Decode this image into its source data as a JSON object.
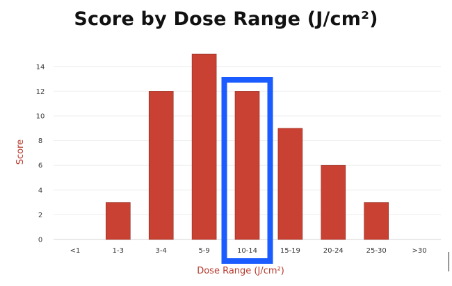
{
  "chart_data": {
    "type": "bar",
    "title": "Score by Dose Range (J/cm²)",
    "xlabel": "Dose Range (J/cm²)",
    "ylabel": "Score",
    "categories": [
      "<1",
      "1-3",
      "3-4",
      "5-9",
      "10-14",
      "15-19",
      "20-24",
      "25-30",
      ">30"
    ],
    "values": [
      0,
      3,
      12,
      15,
      12,
      9,
      6,
      3,
      0
    ],
    "ylim": [
      0,
      15
    ],
    "yticks": [
      0,
      2,
      4,
      6,
      8,
      10,
      12,
      14
    ],
    "grid": true,
    "bar_color": "#c84132",
    "highlight": {
      "category": "10-14",
      "color": "#1a5cff"
    }
  }
}
